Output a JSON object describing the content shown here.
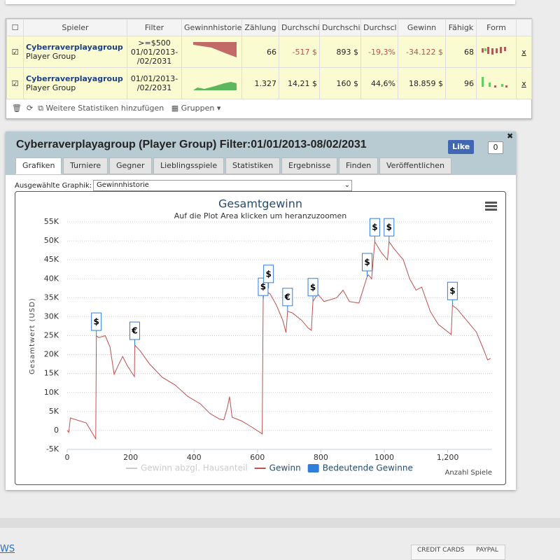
{
  "table": {
    "headers": [
      "Spieler",
      "Filter",
      "Gewinnhistorie",
      "Zählung",
      "Durchschi",
      "Durchschi",
      "Durchscl",
      "Gewinn",
      "Fähigk",
      "Form"
    ],
    "rows": [
      {
        "name": "Cyberraverplayagroup",
        "group": "Player Group",
        "filter": [
          ">=$500",
          "01/01/2013-",
          "/02/2031"
        ],
        "count": "66",
        "avg1": "-517 $",
        "avg2": "893 $",
        "avg3": "-19,3%",
        "win": "-34.122 $",
        "skill": "68",
        "remove": "x"
      },
      {
        "name": "Cyberraverplayagroup",
        "group": "Player Group",
        "filter": [
          "01/01/2013-",
          "/02/2031"
        ],
        "count": "1.327",
        "avg1": "14,21 $",
        "avg2": "160 $",
        "avg3": "44,6%",
        "win": "18.859 $",
        "skill": "96",
        "remove": "x"
      }
    ],
    "toolbar": {
      "more": "Weitere Statistiken hinzufügen",
      "groups": "Gruppen"
    }
  },
  "panel": {
    "title": "Cyberraverplayagroup (Player Group) Filter:01/01/2013-08/02/2031",
    "like": "Like",
    "like_count": "0",
    "tabs": [
      "Grafiken",
      "Turniere",
      "Gegner",
      "Lieblingsspiele",
      "Statistiken",
      "Ergebnisse",
      "Finden",
      "Veröffentlichen"
    ],
    "select_label": "Ausgewählte Graphik:",
    "select_value": "Gewinnhistorie"
  },
  "chart_data": {
    "type": "line",
    "title": "Gesamtgewinn",
    "subtitle": "Auf die Plot Area klicken um heranzuzoomen",
    "y_label": "Gesamtwert (USD)",
    "x_label": "Anzahl Spiele",
    "xlim": [
      0,
      1340
    ],
    "xticks": [
      0,
      200,
      400,
      600,
      800,
      1000,
      {
        "value": 1200,
        "label": "1,200"
      }
    ],
    "ylim": [
      -5000,
      55000
    ],
    "yticks": [
      {
        "value": -5000,
        "label": "-5K"
      },
      0,
      {
        "value": 5000,
        "label": "5K"
      },
      {
        "value": 10000,
        "label": "10K"
      },
      {
        "value": 15000,
        "label": "15K"
      },
      {
        "value": 20000,
        "label": "20K"
      },
      {
        "value": 25000,
        "label": "25K"
      },
      {
        "value": 30000,
        "label": "30K"
      },
      {
        "value": 35000,
        "label": "35K"
      },
      {
        "value": 40000,
        "label": "40K"
      },
      {
        "value": 45000,
        "label": "45K"
      },
      {
        "value": 50000,
        "label": "50K"
      },
      {
        "value": 55000,
        "label": "55K"
      }
    ],
    "grid": true,
    "series": [
      {
        "name": "Gewinn abzgl. Hausanteil",
        "color": "#cccccc",
        "visible": false
      },
      {
        "name": "Gewinn",
        "color": "#c0504d",
        "x": [
          0,
          5,
          10,
          40,
          60,
          90,
          92,
          100,
          120,
          135,
          148,
          160,
          175,
          190,
          212,
          213,
          230,
          260,
          300,
          340,
          380,
          420,
          450,
          480,
          494,
          505,
          512,
          520,
          550,
          580,
          615,
          618,
          620,
          640,
          660,
          670,
          680,
          690,
          695,
          710,
          740,
          760,
          770,
          775,
          790,
          810,
          850,
          870,
          890,
          920,
          946,
          950,
          960,
          970,
          990,
          1010,
          1015,
          1030,
          1060,
          1080,
          1100,
          1118,
          1145,
          1170,
          1211,
          1215,
          1230,
          1260,
          1290,
          1310,
          1326,
          1335
        ],
        "values": [
          0,
          -500,
          3300,
          2500,
          2000,
          -2200,
          24900,
          24500,
          25000,
          22000,
          14800,
          17000,
          19500,
          17000,
          14200,
          22500,
          21000,
          17500,
          14000,
          12000,
          9000,
          7000,
          4500,
          3000,
          2800,
          6000,
          8900,
          3500,
          2500,
          1000,
          -900,
          34100,
          37000,
          36000,
          33000,
          31000,
          29000,
          25800,
          31400,
          31000,
          29000,
          27000,
          26400,
          34000,
          36000,
          34000,
          35000,
          37000,
          34000,
          33600,
          40600,
          41000,
          40000,
          49800,
          47000,
          45000,
          49800,
          48000,
          45000,
          40000,
          37000,
          37800,
          31400,
          28000,
          25300,
          33000,
          32000,
          29000,
          26000,
          22000,
          18600,
          19000
        ]
      }
    ],
    "flags": {
      "name": "Bedeutende Gewinne",
      "color": "#2f7ed8",
      "points": [
        {
          "x": 92,
          "y": 24900,
          "label": "$"
        },
        {
          "x": 213,
          "y": 22500,
          "label": "€"
        },
        {
          "x": 618,
          "y": 34100,
          "label": "$"
        },
        {
          "x": 635,
          "y": 37500,
          "label": "$"
        },
        {
          "x": 695,
          "y": 31400,
          "label": "€"
        },
        {
          "x": 775,
          "y": 34000,
          "label": "$"
        },
        {
          "x": 946,
          "y": 40600,
          "label": "$"
        },
        {
          "x": 970,
          "y": 49800,
          "label": "$"
        },
        {
          "x": 1015,
          "y": 49800,
          "label": "$"
        },
        {
          "x": 1215,
          "y": 33000,
          "label": "$"
        }
      ]
    }
  },
  "footer": {
    "link": "WS",
    "pay1": "CREDIT CARDS",
    "pay2": "PAYPAL"
  }
}
